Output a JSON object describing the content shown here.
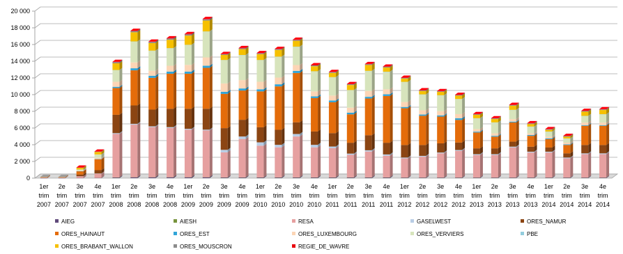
{
  "chart_data": {
    "type": "bar",
    "stacked": true,
    "style": "3d-stacked-column",
    "title": "",
    "xlabel": "",
    "ylabel": "",
    "ylim": [
      0,
      20000
    ],
    "yticks": [
      0,
      2000,
      4000,
      6000,
      8000,
      10000,
      12000,
      14000,
      16000,
      18000,
      20000
    ],
    "ytick_labels": [
      "0",
      "2 000",
      "4 000",
      "6 000",
      "8 000",
      "10 000",
      "12 000",
      "14 000",
      "16 000",
      "18 000",
      "20 000"
    ],
    "grid": true,
    "legend_position": "bottom",
    "categories": [
      [
        "1er",
        "trim",
        "2007"
      ],
      [
        "2e",
        "trim",
        "2007"
      ],
      [
        "3e",
        "trim",
        "2007"
      ],
      [
        "4e",
        "trim",
        "2007"
      ],
      [
        "1er",
        "trim",
        "2008"
      ],
      [
        "2e",
        "trim",
        "2008"
      ],
      [
        "3e",
        "trim",
        "2008"
      ],
      [
        "4e",
        "trim",
        "2008"
      ],
      [
        "1er",
        "trim",
        "2009"
      ],
      [
        "2e",
        "trim",
        "2009"
      ],
      [
        "3e",
        "trim",
        "2009"
      ],
      [
        "4e",
        "trim",
        "2009"
      ],
      [
        "1er",
        "trim",
        "2010"
      ],
      [
        "2e",
        "trim",
        "2010"
      ],
      [
        "3e",
        "trim",
        "2010"
      ],
      [
        "4e",
        "trim",
        "2010"
      ],
      [
        "1er",
        "trim",
        "2011"
      ],
      [
        "2e",
        "trim",
        "2011"
      ],
      [
        "3e",
        "trim",
        "2011"
      ],
      [
        "4e",
        "trim",
        "2011"
      ],
      [
        "1er",
        "trim",
        "2012"
      ],
      [
        "2e",
        "trim",
        "2012"
      ],
      [
        "3e",
        "trim",
        "2012"
      ],
      [
        "4e",
        "trim",
        "2012"
      ],
      [
        "1er",
        "trim",
        "2013"
      ],
      [
        "2e",
        "trim",
        "2013"
      ],
      [
        "3e",
        "trim",
        "2013"
      ],
      [
        "4e",
        "trim",
        "2013"
      ],
      [
        "1er",
        "trim",
        "2014"
      ],
      [
        "2e",
        "trim",
        "2014"
      ],
      [
        "3e",
        "trim",
        "2014"
      ],
      [
        "4e",
        "trim",
        "2014"
      ]
    ],
    "series": [
      {
        "name": "AIEG",
        "color": "#604a7b",
        "values": [
          10,
          10,
          20,
          30,
          80,
          100,
          100,
          100,
          100,
          100,
          80,
          80,
          80,
          80,
          80,
          80,
          80,
          80,
          80,
          80,
          60,
          60,
          60,
          60,
          60,
          60,
          60,
          60,
          60,
          60,
          60,
          60
        ]
      },
      {
        "name": "AIESH",
        "color": "#77933c",
        "values": [
          0,
          0,
          0,
          0,
          10,
          10,
          10,
          10,
          10,
          10,
          10,
          10,
          10,
          10,
          10,
          10,
          10,
          10,
          10,
          10,
          10,
          10,
          10,
          10,
          10,
          10,
          10,
          10,
          10,
          10,
          10,
          10
        ]
      },
      {
        "name": "RESA",
        "color": "#e6a0a0",
        "values": [
          50,
          50,
          200,
          500,
          5200,
          6300,
          6000,
          5900,
          5700,
          5600,
          3000,
          4600,
          3800,
          3600,
          4900,
          3600,
          3500,
          2700,
          3100,
          2600,
          2300,
          2500,
          2900,
          3200,
          2700,
          2700,
          3600,
          3000,
          3000,
          2300,
          2800,
          2800
        ]
      },
      {
        "name": "GASELWEST",
        "color": "#b9cde5",
        "values": [
          0,
          0,
          10,
          30,
          100,
          100,
          100,
          100,
          100,
          100,
          300,
          300,
          400,
          300,
          300,
          300,
          200,
          150,
          150,
          150,
          100,
          100,
          100,
          100,
          100,
          100,
          100,
          100,
          100,
          100,
          100,
          100
        ]
      },
      {
        "name": "ORES_NAMUR",
        "color": "#8b4513",
        "values": [
          20,
          20,
          200,
          400,
          2200,
          2200,
          2000,
          2200,
          2400,
          2500,
          2600,
          2000,
          1800,
          1800,
          1400,
          1600,
          1600,
          1300,
          1800,
          1400,
          1500,
          1300,
          1100,
          900,
          700,
          700,
          600,
          600,
          500,
          500,
          1000,
          1000
        ]
      },
      {
        "name": "ORES_HAINAUT",
        "color": "#e46c0a",
        "values": [
          40,
          40,
          400,
          1300,
          3200,
          4200,
          3800,
          4200,
          4200,
          4900,
          4100,
          3500,
          4300,
          5200,
          5900,
          4000,
          3700,
          3400,
          4400,
          5600,
          4400,
          3500,
          3200,
          2700,
          1900,
          1400,
          2300,
          1300,
          1000,
          1000,
          2300,
          2300
        ]
      },
      {
        "name": "ORES_EST",
        "color": "#31a5d8",
        "values": [
          0,
          0,
          10,
          30,
          150,
          250,
          250,
          250,
          250,
          250,
          250,
          250,
          250,
          250,
          250,
          200,
          200,
          200,
          200,
          200,
          150,
          150,
          150,
          200,
          100,
          100,
          100,
          100,
          100,
          80,
          80,
          80
        ]
      },
      {
        "name": "ORES_LUXEMBOURG",
        "color": "#fcd5b5",
        "values": [
          10,
          10,
          50,
          150,
          600,
          700,
          600,
          700,
          800,
          1000,
          1000,
          1000,
          900,
          800,
          700,
          600,
          600,
          600,
          700,
          600,
          600,
          500,
          500,
          500,
          300,
          300,
          300,
          200,
          200,
          200,
          300,
          300
        ]
      },
      {
        "name": "ORES_VERVIERS",
        "color": "#d7e4bc",
        "values": [
          10,
          10,
          150,
          400,
          1400,
          2500,
          2400,
          2100,
          2400,
          3100,
          2800,
          3000,
          2600,
          2500,
          2200,
          2400,
          2200,
          2100,
          2400,
          2100,
          2400,
          1900,
          1900,
          1800,
          1300,
          1300,
          1100,
          800,
          600,
          500,
          800,
          1000
        ]
      },
      {
        "name": "PBE",
        "color": "#93cddd",
        "values": [
          0,
          0,
          0,
          0,
          10,
          10,
          10,
          10,
          10,
          10,
          10,
          10,
          10,
          10,
          10,
          10,
          10,
          10,
          10,
          10,
          10,
          10,
          10,
          10,
          10,
          10,
          10,
          10,
          10,
          10,
          10,
          10
        ]
      },
      {
        "name": "ORES_BRABANT_WALLON",
        "color": "#f6c000",
        "values": [
          10,
          10,
          200,
          300,
          800,
          1100,
          900,
          1000,
          1100,
          1300,
          600,
          700,
          700,
          800,
          700,
          600,
          500,
          600,
          700,
          500,
          400,
          400,
          400,
          400,
          400,
          400,
          500,
          300,
          200,
          200,
          500,
          500
        ]
      },
      {
        "name": "ORES_MOUSCRON",
        "color": "#8c8c8c",
        "values": [
          10,
          10,
          30,
          40,
          150,
          150,
          150,
          150,
          150,
          150,
          100,
          100,
          100,
          100,
          100,
          100,
          100,
          100,
          100,
          100,
          80,
          80,
          80,
          80,
          80,
          80,
          80,
          80,
          80,
          80,
          80,
          80
        ]
      },
      {
        "name": "REGIE_DE_WAVRE",
        "color": "#e8000b",
        "values": [
          0,
          0,
          10,
          20,
          40,
          40,
          40,
          40,
          50,
          50,
          40,
          40,
          40,
          40,
          40,
          40,
          30,
          30,
          30,
          30,
          30,
          30,
          30,
          30,
          30,
          30,
          30,
          30,
          30,
          30,
          30,
          30
        ]
      }
    ]
  }
}
